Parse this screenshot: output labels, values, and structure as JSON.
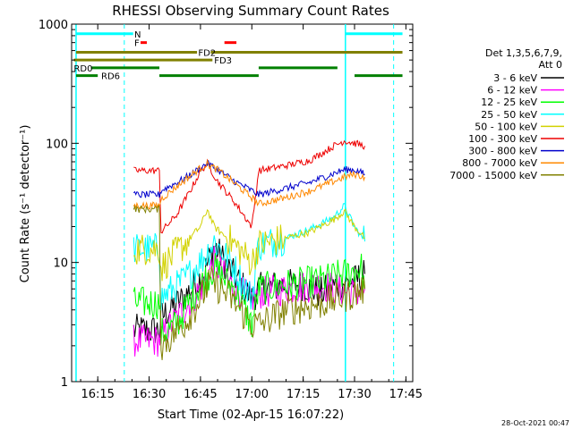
{
  "chart_data": {
    "type": "line",
    "title": "RHESSI Observing Summary Count Rates",
    "xlabel": "Start Time (02-Apr-15 16:07:22)",
    "ylabel": "Count Rate (s⁻¹ detector⁻¹)",
    "yscale": "log",
    "ylim": [
      1,
      1000
    ],
    "xlim": [
      "16:07:22",
      "17:47:00"
    ],
    "x_ticks": [
      "16:15",
      "16:30",
      "16:45",
      "17:00",
      "17:15",
      "17:30",
      "17:45"
    ],
    "y_ticks": [
      "1",
      "10",
      "100",
      "1000"
    ],
    "timestamp": "28-Oct-2021 00:47",
    "legend": {
      "placement": "right",
      "header": [
        "Det 1,3,5,6,7,9,",
        "Att 0"
      ]
    },
    "series": [
      {
        "name": "3 - 6 keV",
        "color": "#000000",
        "points": [
          [
            "16:25:30",
            2.7
          ],
          [
            "16:33:00",
            2.7
          ],
          [
            "16:33:30",
            3.5
          ],
          [
            "16:40:00",
            5
          ],
          [
            "16:46:00",
            8
          ],
          [
            "16:49:00",
            14
          ],
          [
            "16:53:00",
            9
          ],
          [
            "17:00:00",
            5
          ],
          [
            "17:02:00",
            6
          ],
          [
            "17:10:00",
            6.5
          ],
          [
            "17:15:00",
            6.5
          ],
          [
            "17:20:00",
            5.5
          ],
          [
            "17:25:00",
            6.5
          ],
          [
            "17:30:00",
            7
          ],
          [
            "17:33:00",
            8
          ]
        ]
      },
      {
        "name": "6 - 12 keV",
        "color": "#ff00ff",
        "points": [
          [
            "16:25:30",
            2.2
          ],
          [
            "16:32:30",
            2.2
          ],
          [
            "16:40:00",
            4
          ],
          [
            "16:45:00",
            6
          ],
          [
            "16:49:00",
            10
          ],
          [
            "16:55:00",
            6
          ],
          [
            "17:00:00",
            5
          ],
          [
            "17:02:00",
            5.5
          ],
          [
            "17:10:00",
            6
          ],
          [
            "17:20:00",
            6.5
          ],
          [
            "17:30:00",
            5.5
          ],
          [
            "17:33:00",
            6
          ]
        ]
      },
      {
        "name": "12 - 25 keV",
        "color": "#00ff00",
        "points": [
          [
            "16:25:30",
            4.6
          ],
          [
            "16:33:00",
            4.6
          ],
          [
            "16:33:30",
            2.5
          ],
          [
            "16:38:00",
            3
          ],
          [
            "16:44:00",
            6
          ],
          [
            "16:49:00",
            9
          ],
          [
            "16:55:00",
            6
          ],
          [
            "17:00:00",
            3
          ],
          [
            "17:02:00",
            6
          ],
          [
            "17:10:00",
            6.5
          ],
          [
            "17:20:00",
            7
          ],
          [
            "17:27:00",
            8
          ],
          [
            "17:32:00",
            9
          ],
          [
            "17:33:00",
            6
          ]
        ]
      },
      {
        "name": "25 - 50 keV",
        "color": "#00ffff",
        "points": [
          [
            "16:25:30",
            13
          ],
          [
            "16:33:00",
            13
          ],
          [
            "16:33:30",
            5
          ],
          [
            "16:40:00",
            7
          ],
          [
            "16:46:00",
            11
          ],
          [
            "16:49:00",
            15
          ],
          [
            "16:54:00",
            10
          ],
          [
            "17:00:00",
            5
          ],
          [
            "17:02:00",
            14
          ],
          [
            "17:10:00",
            16
          ],
          [
            "17:17:00",
            19
          ],
          [
            "17:24:00",
            24
          ],
          [
            "17:27:00",
            30
          ],
          [
            "17:30:00",
            20
          ],
          [
            "17:33:00",
            15
          ]
        ]
      },
      {
        "name": "50 - 100 keV",
        "color": "#d2d200",
        "points": [
          [
            "16:25:30",
            13
          ],
          [
            "16:33:00",
            13
          ],
          [
            "16:33:30",
            9
          ],
          [
            "16:40:00",
            14
          ],
          [
            "16:45:00",
            20
          ],
          [
            "16:47:00",
            28
          ],
          [
            "16:49:00",
            20
          ],
          [
            "16:54:00",
            15
          ],
          [
            "17:00:00",
            10
          ],
          [
            "17:02:00",
            14
          ],
          [
            "17:10:00",
            16
          ],
          [
            "17:17:00",
            18
          ],
          [
            "17:24:00",
            23
          ],
          [
            "17:27:00",
            27
          ],
          [
            "17:30:00",
            20
          ],
          [
            "17:33:00",
            16
          ]
        ]
      },
      {
        "name": "100 - 300 keV",
        "color": "#ee0000",
        "points": [
          [
            "16:25:30",
            59
          ],
          [
            "16:33:00",
            59
          ],
          [
            "16:33:30",
            18
          ],
          [
            "16:38:00",
            25
          ],
          [
            "16:42:00",
            40
          ],
          [
            "16:45:00",
            58
          ],
          [
            "16:47:00",
            68
          ],
          [
            "16:50:00",
            48
          ],
          [
            "16:55:00",
            32
          ],
          [
            "17:00:00",
            20
          ],
          [
            "17:02:00",
            59
          ],
          [
            "17:10:00",
            65
          ],
          [
            "17:17:00",
            72
          ],
          [
            "17:24:00",
            95
          ],
          [
            "17:27:00",
            105
          ],
          [
            "17:30:00",
            100
          ],
          [
            "17:33:00",
            95
          ]
        ]
      },
      {
        "name": "300 - 800 keV",
        "color": "#0000cc",
        "points": [
          [
            "16:25:30",
            37
          ],
          [
            "16:33:00",
            37
          ],
          [
            "16:33:30",
            40
          ],
          [
            "16:40:00",
            50
          ],
          [
            "16:45:00",
            62
          ],
          [
            "16:47:00",
            68
          ],
          [
            "16:50:00",
            60
          ],
          [
            "16:55:00",
            48
          ],
          [
            "17:00:00",
            40
          ],
          [
            "17:02:00",
            37
          ],
          [
            "17:10:00",
            42
          ],
          [
            "17:17:00",
            47
          ],
          [
            "17:24:00",
            56
          ],
          [
            "17:27:00",
            60
          ],
          [
            "17:30:00",
            60
          ],
          [
            "17:33:00",
            55
          ]
        ]
      },
      {
        "name": "800 - 7000 keV",
        "color": "#ff8800",
        "points": [
          [
            "16:25:30",
            30
          ],
          [
            "16:33:00",
            30
          ],
          [
            "16:33:30",
            34
          ],
          [
            "16:40:00",
            48
          ],
          [
            "16:45:00",
            62
          ],
          [
            "16:47:00",
            67
          ],
          [
            "16:50:00",
            60
          ],
          [
            "16:55:00",
            46
          ],
          [
            "17:00:00",
            35
          ],
          [
            "17:02:00",
            31
          ],
          [
            "17:10:00",
            35
          ],
          [
            "17:17:00",
            40
          ],
          [
            "17:24:00",
            48
          ],
          [
            "17:27:00",
            52
          ],
          [
            "17:30:00",
            55
          ],
          [
            "17:33:00",
            52
          ]
        ]
      },
      {
        "name": "7000 - 15000 keV",
        "color": "#808000",
        "points": [
          [
            "16:25:30",
            28
          ],
          [
            "16:33:00",
            28
          ],
          [
            "16:33:30",
            2
          ],
          [
            "16:40:00",
            3
          ],
          [
            "16:45:00",
            5
          ],
          [
            "16:48:00",
            7
          ],
          [
            "16:54:00",
            5
          ],
          [
            "17:00:00",
            3
          ],
          [
            "17:02:00",
            3
          ],
          [
            "17:10:00",
            4
          ],
          [
            "17:20:00",
            4.5
          ],
          [
            "17:30:00",
            5.5
          ],
          [
            "17:33:00",
            6
          ]
        ]
      }
    ],
    "vertical_lines": {
      "color": "#00ffff",
      "solid": [
        "16:08:40",
        "17:27:20"
      ],
      "dashed": [
        "16:22:45",
        "17:41:25"
      ]
    },
    "flag_bars": [
      {
        "label": "N",
        "label_at": "16:25:40",
        "color": "#00ffff",
        "y": 830,
        "segments": [
          [
            "16:08:40",
            "16:25:20"
          ],
          [
            "17:27:20",
            "17:44:00"
          ]
        ]
      },
      {
        "label": "F",
        "label_at": "16:25:40",
        "color": "#ff0000",
        "y": 700,
        "segments": [
          [
            "16:27:30",
            "16:29:20"
          ],
          [
            "16:52:00",
            "16:55:30"
          ]
        ]
      },
      {
        "label": "FD2",
        "label_at": "16:44:20",
        "color": "#808000",
        "y": 580,
        "segments": [
          [
            "16:08:40",
            "16:44:00"
          ],
          [
            "16:48:00",
            "17:44:00"
          ]
        ]
      },
      {
        "label": "FD3",
        "label_at": "16:49:00",
        "color": "#808000",
        "y": 500,
        "segments": [
          [
            "16:08:00",
            "16:48:30"
          ]
        ]
      },
      {
        "label": "RD0",
        "label_at": "16:08:00",
        "color": "#008000",
        "y": 430,
        "segments": [
          [
            "16:13:00",
            "16:33:00"
          ],
          [
            "17:02:00",
            "17:25:00"
          ]
        ]
      },
      {
        "label": "RD6",
        "label_at": "16:16:00",
        "color": "#008000",
        "y": 370,
        "segments": [
          [
            "16:08:40",
            "16:15:00"
          ],
          [
            "16:33:00",
            "17:02:00"
          ],
          [
            "17:30:00",
            "17:44:00"
          ]
        ]
      }
    ]
  }
}
